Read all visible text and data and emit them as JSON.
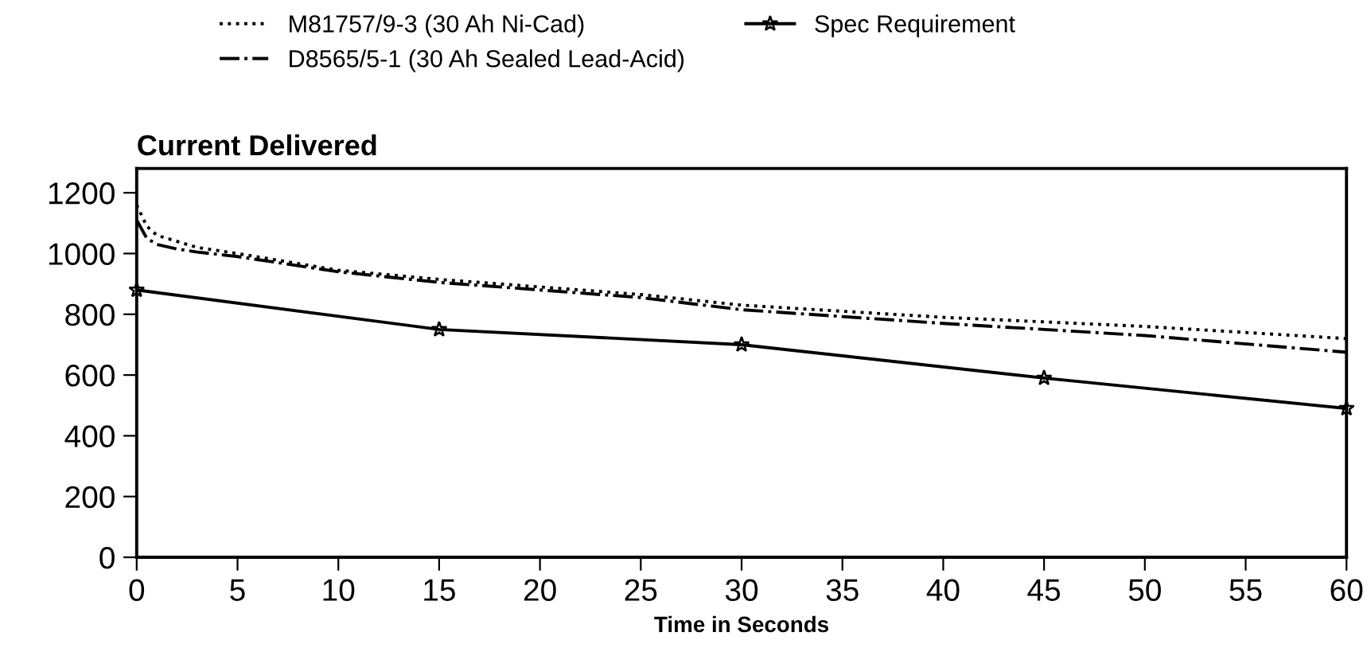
{
  "chart_data": {
    "type": "line",
    "title": "Current Delivered",
    "xlabel": "Time in Seconds",
    "xlim": [
      0,
      60
    ],
    "xticks": [
      0,
      5,
      10,
      15,
      20,
      25,
      30,
      35,
      40,
      45,
      50,
      55,
      60
    ],
    "ylim": [
      0,
      1280
    ],
    "yticks": [
      0,
      200,
      400,
      600,
      800,
      1000,
      1200
    ],
    "grid": false,
    "legend": "top left",
    "series": [
      {
        "name": "M81757/9-3 (30 Ah Ni-Cad)",
        "color": "#000000",
        "line_style": "dotted",
        "marker": "none",
        "x": [
          0,
          0.5,
          1,
          2,
          3,
          5,
          10,
          15,
          20,
          25,
          30,
          40,
          50,
          60
        ],
        "values": [
          1160,
          1090,
          1060,
          1040,
          1020,
          1000,
          945,
          915,
          890,
          865,
          830,
          790,
          760,
          720
        ]
      },
      {
        "name": "D8565/5-1 (30 Ah Sealed Lead-Acid)",
        "color": "#000000",
        "line_style": "dashdot",
        "marker": "none",
        "x": [
          0,
          0.5,
          1,
          2,
          3,
          5,
          10,
          15,
          20,
          25,
          30,
          40,
          50,
          60
        ],
        "values": [
          1110,
          1050,
          1030,
          1015,
          1005,
          990,
          940,
          905,
          880,
          855,
          815,
          770,
          730,
          675
        ]
      },
      {
        "name": "Spec Requirement",
        "color": "#000000",
        "line_style": "solid",
        "marker": "star",
        "x": [
          0,
          15,
          30,
          45,
          60
        ],
        "values": [
          880,
          750,
          700,
          590,
          490
        ]
      }
    ]
  }
}
